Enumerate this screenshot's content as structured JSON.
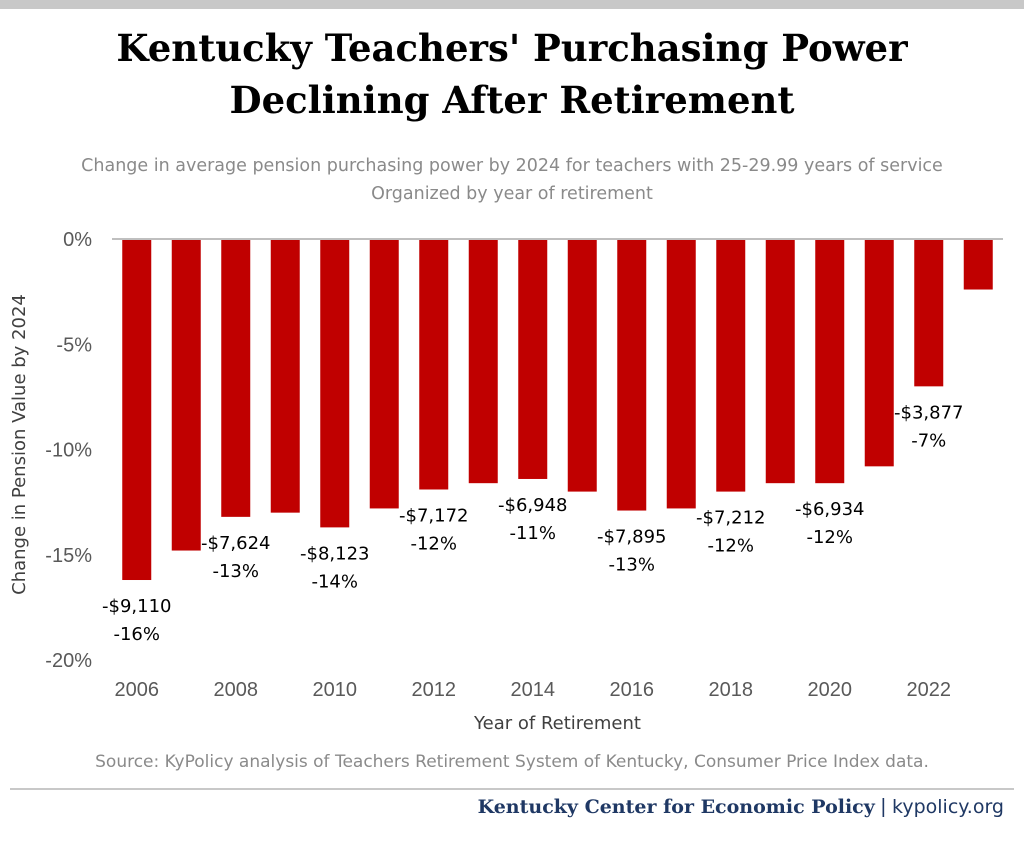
{
  "header": {
    "title_line1": "Kentucky Teachers' Purchasing Power",
    "title_line2": "Declining After Retirement",
    "subtitle_line1": "Change in average pension purchasing power by 2024 for teachers with 25-29.99 years of service",
    "subtitle_line2": "Organized by year of retirement"
  },
  "source": "Source: KyPolicy analysis of Teachers Retirement System of Kentucky, Consumer Price Index data.",
  "footer": {
    "org": "Kentucky Center for Economic Policy",
    "separator": "|",
    "site": "kypolicy.org"
  },
  "colors": {
    "bar": "#c00000",
    "footer_blue": "#1f3864",
    "muted_text": "#8a8a8a"
  },
  "chart_data": {
    "type": "bar",
    "xlabel": "Year of Retirement",
    "ylabel": "Change in Pension Value by 2024",
    "ylim": [
      -20,
      0
    ],
    "yticks": [
      "0%",
      "-5%",
      "-10%",
      "-15%",
      "-20%"
    ],
    "ytick_values": [
      0,
      -5,
      -10,
      -15,
      -20
    ],
    "grid": false,
    "categories": [
      "2006",
      "2007",
      "2008",
      "2009",
      "2010",
      "2011",
      "2012",
      "2013",
      "2014",
      "2015",
      "2016",
      "2017",
      "2018",
      "2019",
      "2020",
      "2021",
      "2022",
      "2023"
    ],
    "xtick_labels": [
      "2006",
      "",
      "2008",
      "",
      "2010",
      "",
      "2012",
      "",
      "2014",
      "",
      "2016",
      "",
      "2018",
      "",
      "2020",
      "",
      "2022",
      ""
    ],
    "values": [
      -16.2,
      -14.8,
      -13.2,
      -13.0,
      -13.7,
      -12.8,
      -11.9,
      -11.6,
      -11.4,
      -12.0,
      -12.9,
      -12.8,
      -12.0,
      -11.6,
      -11.6,
      -10.8,
      -7.0,
      -2.4
    ],
    "data_labels": [
      [
        "-$9,110",
        "-16%"
      ],
      null,
      [
        "-$7,624",
        "-13%"
      ],
      null,
      [
        "-$8,123",
        "-14%"
      ],
      null,
      [
        "-$7,172",
        "-12%"
      ],
      null,
      [
        "-$6,948",
        "-11%"
      ],
      null,
      [
        "-$7,895",
        "-13%"
      ],
      null,
      [
        "-$7,212",
        "-12%"
      ],
      null,
      [
        "-$6,934",
        "-12%"
      ],
      null,
      [
        "-$3,877",
        "-7%"
      ],
      null
    ]
  }
}
